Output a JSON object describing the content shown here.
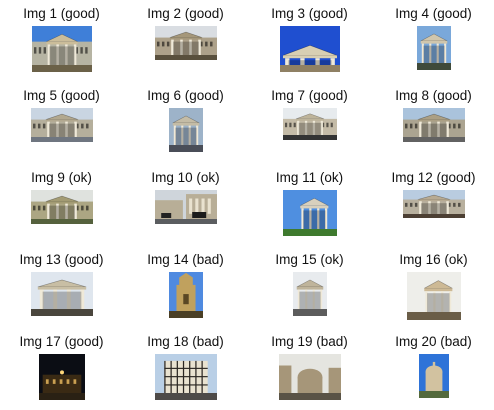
{
  "images": [
    {
      "label": "Img 1 (good)",
      "scene": "portico-wide",
      "sky": "#3f7fd8",
      "ground": "#6b6148",
      "stone": "#cbbd9a"
    },
    {
      "label": "Img 2 (good)",
      "scene": "portico-wide",
      "sky": "#d9dde2",
      "ground": "#59503d",
      "stone": "#a5977a"
    },
    {
      "label": "Img 3 (good)",
      "scene": "pediment",
      "sky": "#1f4fd0",
      "ground": "#8f8064",
      "stone": "#d8cfb3"
    },
    {
      "label": "Img 4 (good)",
      "scene": "portico-tall",
      "sky": "#7aa8da",
      "ground": "#3f4a3a",
      "stone": "#d0c6ad"
    },
    {
      "label": "Img 5 (good)",
      "scene": "portico-wide",
      "sky": "#c9d5e2",
      "ground": "#6f7680",
      "stone": "#b2a88f"
    },
    {
      "label": "Img 6 (good)",
      "scene": "portico-tall",
      "sky": "#9db3c9",
      "ground": "#4a4e58",
      "stone": "#c4bca6"
    },
    {
      "label": "Img 7 (good)",
      "scene": "portico-wide",
      "sky": "#e7ebee",
      "ground": "#333333",
      "stone": "#bdb39a"
    },
    {
      "label": "Img 8 (good)",
      "scene": "portico-wide",
      "sky": "#aac3dc",
      "ground": "#626262",
      "stone": "#ab9f84"
    },
    {
      "label": "Img 9 (ok)",
      "scene": "portico-wide",
      "sky": "#dfe2de",
      "ground": "#55613d",
      "stone": "#a39b73"
    },
    {
      "label": "Img 10 (ok)",
      "scene": "street",
      "sky": "#cfd5db",
      "ground": "#5b5d60",
      "stone": "#b8ae97"
    },
    {
      "label": "Img 11 (ok)",
      "scene": "portico-angle",
      "sky": "#4f8fe0",
      "ground": "#3e7a2e",
      "stone": "#d8d0bd"
    },
    {
      "label": "Img 12 (good)",
      "scene": "portico-wide",
      "sky": "#b9cce0",
      "ground": "#4c3f33",
      "stone": "#b7aa92"
    },
    {
      "label": "Img 13 (good)",
      "scene": "portico-tall",
      "sky": "#dfe6ee",
      "ground": "#4a463d",
      "stone": "#c8bea4"
    },
    {
      "label": "Img 14 (bad)",
      "scene": "tower",
      "sky": "#4f8ae0",
      "ground": "#4a3f25",
      "stone": "#c0a15e"
    },
    {
      "label": "Img 15 (ok)",
      "scene": "portico-tall",
      "sky": "#e8ebee",
      "ground": "#5c5c5c",
      "stone": "#bfb49b"
    },
    {
      "label": "Img 16 (ok)",
      "scene": "portico-angle",
      "sky": "#eeeeea",
      "ground": "#6a5d47",
      "stone": "#cdb995"
    },
    {
      "label": "Img 17 (good)",
      "scene": "night",
      "sky": "#0b0d14",
      "ground": "#2a2114",
      "stone": "#caa052"
    },
    {
      "label": "Img 18 (bad)",
      "scene": "timber",
      "sky": "#b9cfe6",
      "ground": "#4d4a48",
      "stone": "#e9e2d0"
    },
    {
      "label": "Img 19 (bad)",
      "scene": "dome",
      "sky": "#e5e5e0",
      "ground": "#5a5346",
      "stone": "#a69679"
    },
    {
      "label": "Img 20 (bad)",
      "scene": "camera",
      "sky": "#2e73d8",
      "ground": "#546a3d",
      "stone": "#d2c2a0"
    }
  ]
}
